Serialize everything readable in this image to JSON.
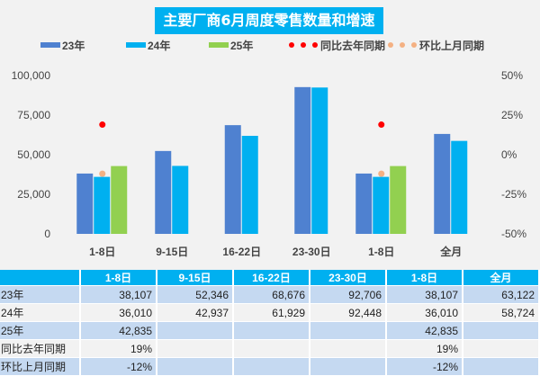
{
  "chart_data": {
    "type": "bar",
    "title": "主要厂商6月周度零售数量和增速",
    "categories": [
      "1-8日",
      "9-15日",
      "16-22日",
      "23-30日",
      "1-8日",
      "全月"
    ],
    "series": [
      {
        "name": "23年",
        "type": "bar",
        "color": "#4f81d0",
        "values": [
          38107,
          52346,
          68676,
          92706,
          38107,
          63122
        ]
      },
      {
        "name": "24年",
        "type": "bar",
        "color": "#00b0f0",
        "values": [
          36010,
          42937,
          61929,
          92448,
          36010,
          58724
        ]
      },
      {
        "name": "25年",
        "type": "bar",
        "color": "#92d050",
        "values": [
          42835,
          null,
          null,
          null,
          42835,
          null
        ]
      },
      {
        "name": "同比去年同期",
        "type": "scatter",
        "axis": "right",
        "color": "#ff0000",
        "values": [
          19,
          null,
          null,
          null,
          19,
          null
        ]
      },
      {
        "name": "环比上月同期",
        "type": "scatter",
        "axis": "right",
        "color": "#f4b183",
        "values": [
          -12,
          null,
          null,
          null,
          -12,
          null
        ]
      }
    ],
    "ylim": [
      0,
      100000
    ],
    "yticks": [
      "0",
      "25,000",
      "50,000",
      "75,000",
      "100,000"
    ],
    "y2lim": [
      -50,
      50
    ],
    "y2ticks": [
      "-50%",
      "-25%",
      "0%",
      "25%",
      "50%"
    ],
    "legend": "top"
  },
  "table": {
    "header": [
      "",
      "1-8日",
      "9-15日",
      "16-22日",
      "23-30日",
      "1-8日",
      "全月"
    ],
    "rows": [
      [
        "23年",
        "38,107",
        "52,346",
        "68,676",
        "92,706",
        "38,107",
        "63,122"
      ],
      [
        "24年",
        "36,010",
        "42,937",
        "61,929",
        "92,448",
        "36,010",
        "58,724"
      ],
      [
        "25年",
        "42,835",
        "",
        "",
        "",
        "42,835",
        ""
      ],
      [
        "同比去年同期",
        "19%",
        "",
        "",
        "",
        "19%",
        ""
      ],
      [
        "环比上月同期",
        "-12%",
        "",
        "",
        "",
        "-12%",
        ""
      ]
    ]
  }
}
